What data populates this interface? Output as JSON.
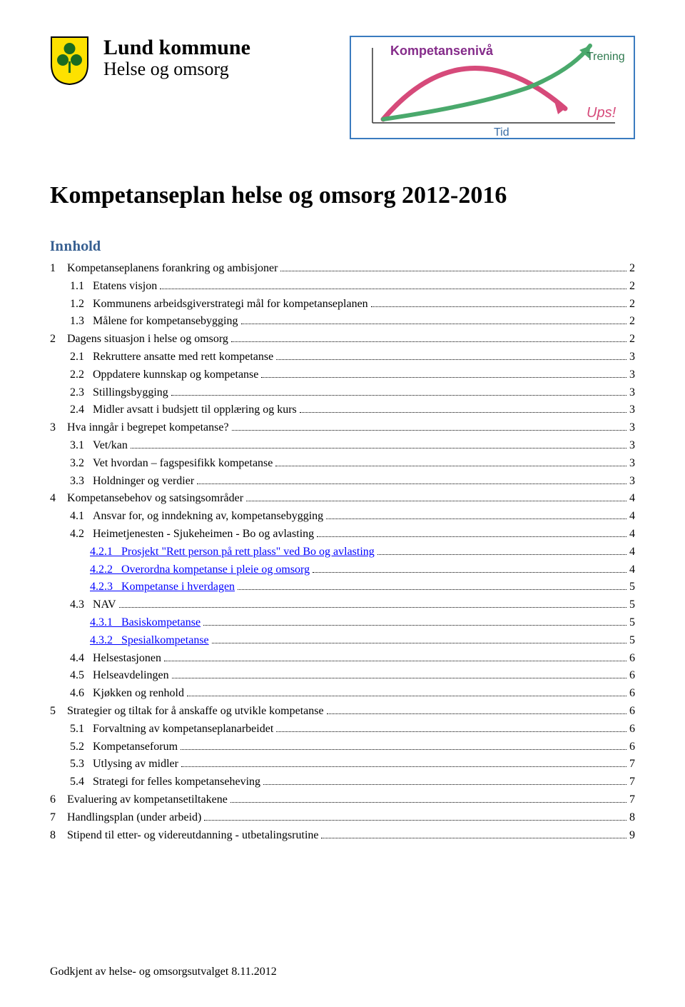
{
  "header": {
    "org_name": "Lund kommune",
    "org_dept": "Helse og omsorg",
    "logo": {
      "shield_bg": "#fde100",
      "shield_border": "#000000",
      "motif_color": "#1a6b20"
    },
    "diagram": {
      "border_color": "#3a7bbf",
      "label_top_left": "Kompetansenivå",
      "label_top_right": "Trening",
      "label_bottom_mid": "Tid",
      "label_exclaim": "Ups!",
      "colors": {
        "label_top_left": "#852c8a",
        "label_top_right": "#2f7a4f",
        "label_bottom_mid": "#3a6ea5",
        "label_exclaim": "#d64a7a",
        "arc_magenta": "#d64a7a",
        "arc_green": "#4aa96c",
        "axis": "#333333"
      }
    }
  },
  "document": {
    "title": "Kompetanseplan helse og omsorg 2012-2016",
    "toc_heading": "Innhold",
    "link_color": "#0000ff"
  },
  "toc": [
    {
      "level": 0,
      "num": "1",
      "text": "Kompetanseplanens forankring og ambisjoner",
      "page": "2",
      "link": false
    },
    {
      "level": 1,
      "num": "1.1",
      "text": "Etatens visjon",
      "page": "2",
      "link": false
    },
    {
      "level": 1,
      "num": "1.2",
      "text": "Kommunens arbeidsgiverstrategi mål for kompetanseplanen",
      "page": "2",
      "link": false
    },
    {
      "level": 1,
      "num": "1.3",
      "text": "Målene for kompetansebygging",
      "page": "2",
      "link": false
    },
    {
      "level": 0,
      "num": "2",
      "text": "Dagens situasjon i helse og omsorg",
      "page": "2",
      "link": false
    },
    {
      "level": 1,
      "num": "2.1",
      "text": "Rekruttere ansatte med rett kompetanse",
      "page": "3",
      "link": false
    },
    {
      "level": 1,
      "num": "2.2",
      "text": "Oppdatere kunnskap og kompetanse",
      "page": "3",
      "link": false
    },
    {
      "level": 1,
      "num": "2.3",
      "text": "Stillingsbygging",
      "page": "3",
      "link": false
    },
    {
      "level": 1,
      "num": "2.4",
      "text": "Midler avsatt i budsjett til opplæring og kurs",
      "page": "3",
      "link": false
    },
    {
      "level": 0,
      "num": "3",
      "text": "Hva inngår i begrepet kompetanse?",
      "page": "3",
      "link": false
    },
    {
      "level": 1,
      "num": "3.1",
      "text": "Vet/kan",
      "page": "3",
      "link": false
    },
    {
      "level": 1,
      "num": "3.2",
      "text": "Vet hvordan – fagspesifikk kompetanse",
      "page": "3",
      "link": false
    },
    {
      "level": 1,
      "num": "3.3",
      "text": "Holdninger og verdier",
      "page": "3",
      "link": false
    },
    {
      "level": 0,
      "num": "4",
      "text": "Kompetansebehov og satsingsområder",
      "page": "4",
      "link": false
    },
    {
      "level": 1,
      "num": "4.1",
      "text": "Ansvar for, og inndekning av, kompetansebygging",
      "page": "4",
      "link": false
    },
    {
      "level": 1,
      "num": "4.2",
      "text": "Heimetjenesten - Sjukeheimen - Bo og avlasting",
      "page": "4",
      "link": false
    },
    {
      "level": 2,
      "num": "4.2.1",
      "text": "Prosjekt \"Rett person på rett plass\" ved Bo og avlasting",
      "page": "4",
      "link": true
    },
    {
      "level": 2,
      "num": "4.2.2",
      "text": "Overordna kompetanse i pleie og omsorg",
      "page": "4",
      "link": true
    },
    {
      "level": 2,
      "num": "4.2.3",
      "text": "Kompetanse i hverdagen",
      "page": "5",
      "link": true
    },
    {
      "level": 1,
      "num": "4.3",
      "text": "NAV",
      "page": "5",
      "link": false
    },
    {
      "level": 2,
      "num": "4.3.1",
      "text": "Basiskompetanse",
      "page": "5",
      "link": true
    },
    {
      "level": 2,
      "num": "4.3.2",
      "text": "Spesialkompetanse",
      "page": "5",
      "link": true
    },
    {
      "level": 1,
      "num": "4.4",
      "text": "Helsestasjonen",
      "page": "6",
      "link": false
    },
    {
      "level": 1,
      "num": "4.5",
      "text": "Helseavdelingen",
      "page": "6",
      "link": false
    },
    {
      "level": 1,
      "num": "4.6",
      "text": "Kjøkken og renhold",
      "page": "6",
      "link": false
    },
    {
      "level": 0,
      "num": "5",
      "text": "Strategier og tiltak for å anskaffe og utvikle kompetanse",
      "page": "6",
      "link": false
    },
    {
      "level": 1,
      "num": "5.1",
      "text": "Forvaltning av kompetanseplanarbeidet",
      "page": "6",
      "link": false
    },
    {
      "level": 1,
      "num": "5.2",
      "text": "Kompetanseforum",
      "page": "6",
      "link": false
    },
    {
      "level": 1,
      "num": "5.3",
      "text": "Utlysing av midler",
      "page": "7",
      "link": false
    },
    {
      "level": 1,
      "num": "5.4",
      "text": "Strategi for felles kompetanseheving",
      "page": "7",
      "link": false
    },
    {
      "level": 0,
      "num": "6",
      "text": "Evaluering av kompetansetiltakene",
      "page": "7",
      "link": false
    },
    {
      "level": 0,
      "num": "7",
      "text": "Handlingsplan (under arbeid)",
      "page": "8",
      "link": false
    },
    {
      "level": 0,
      "num": "8",
      "text": "Stipend til etter- og videreutdanning - utbetalingsrutine",
      "page": "9",
      "link": false
    }
  ],
  "footer": "Godkjent av helse- og omsorgsutvalget 8.11.2012"
}
